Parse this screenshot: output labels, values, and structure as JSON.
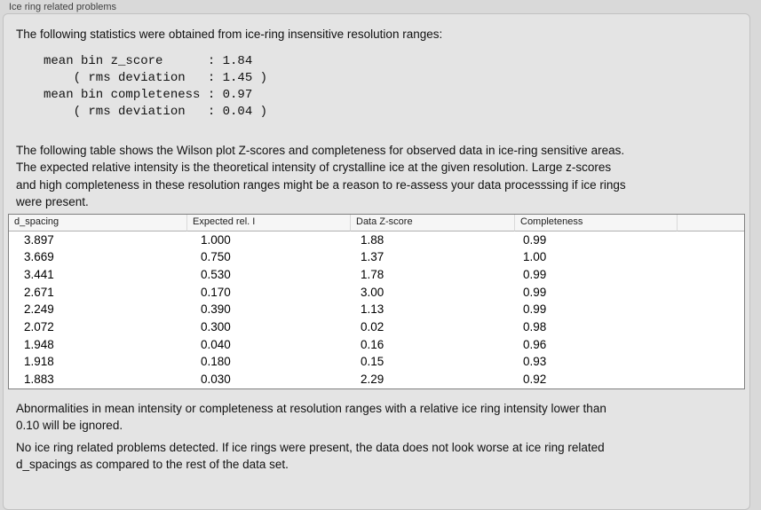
{
  "panel": {
    "title": "Ice ring related problems"
  },
  "intro": "The following statistics were obtained from ice-ring insensitive resolution ranges:",
  "stats_block": "mean bin z_score      : 1.84\n    ( rms deviation   : 1.45 )\nmean bin completeness : 0.97\n    ( rms deviation   : 0.04 )",
  "description": "The following table shows the Wilson plot Z-scores and completeness for observed data in ice-ring sensitive areas.\nThe expected relative intensity is the theoretical intensity of crystalline ice at the given resolution. Large z-scores\nand high completeness in these resolution ranges might be a reason to re-assess your data processsing if ice rings\nwere present.",
  "table": {
    "columns": [
      "d_spacing",
      "Expected rel. I",
      "Data Z-score",
      "Completeness",
      ""
    ],
    "rows": [
      [
        "3.897",
        "1.000",
        "1.88",
        "0.99"
      ],
      [
        "3.669",
        "0.750",
        "1.37",
        "1.00"
      ],
      [
        "3.441",
        "0.530",
        "1.78",
        "0.99"
      ],
      [
        "2.671",
        "0.170",
        "3.00",
        "0.99"
      ],
      [
        "2.249",
        "0.390",
        "1.13",
        "0.99"
      ],
      [
        "2.072",
        "0.300",
        "0.02",
        "0.98"
      ],
      [
        "1.948",
        "0.040",
        "0.16",
        "0.96"
      ],
      [
        "1.918",
        "0.180",
        "0.15",
        "0.93"
      ],
      [
        "1.883",
        "0.030",
        "2.29",
        "0.92"
      ]
    ]
  },
  "note": "Abnormalities in mean intensity or completeness at resolution ranges with a relative ice ring intensity lower than\n0.10 will be ignored.",
  "conclusion": "No ice ring related problems detected. If ice rings were present, the data does not look worse at ice ring related\nd_spacings as compared to the rest of the data set.",
  "colors": {
    "page_bg": "#d9d9d9",
    "panel_bg": "#e4e4e4",
    "table_header_bg": "#f6f6f6",
    "table_border": "#7f7f7f"
  }
}
